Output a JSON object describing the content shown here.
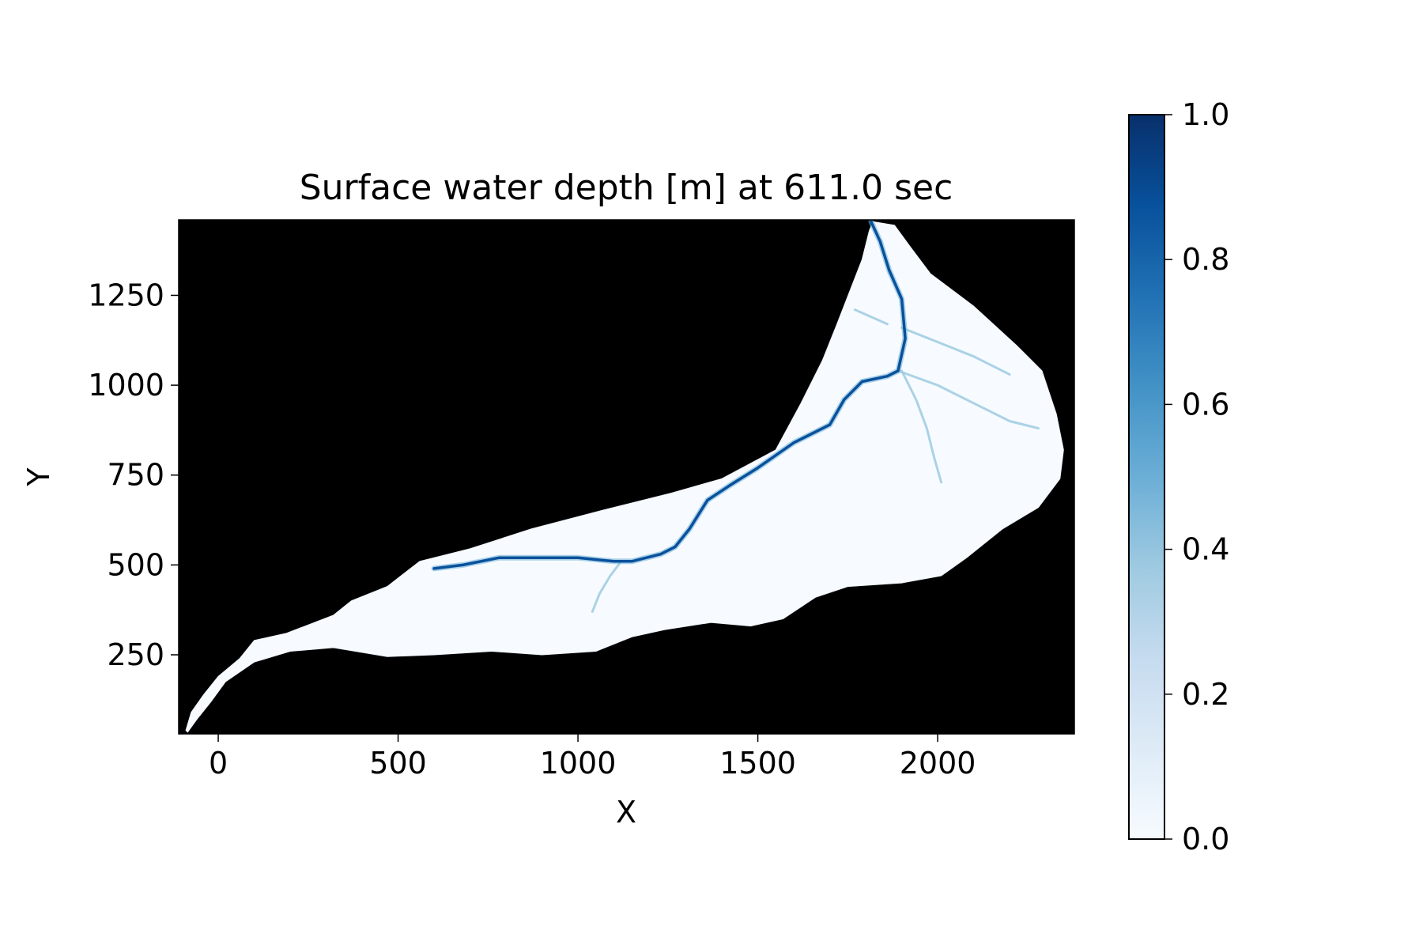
{
  "chart_data": {
    "type": "heatmap",
    "title": "Surface water depth [m] at 611.0 sec",
    "xlabel": "X",
    "ylabel": "Y",
    "xlim": [
      -110,
      2380
    ],
    "ylim": [
      30,
      1460
    ],
    "x_ticks": [
      0,
      500,
      1000,
      1500,
      2000
    ],
    "y_ticks": [
      250,
      500,
      750,
      1000,
      1250
    ],
    "background_color": "#000000",
    "colormap": "Blues",
    "colormap_stops": [
      "#f7fbff",
      "#deebf7",
      "#c6dbef",
      "#9ecae1",
      "#6baed6",
      "#4292c6",
      "#2171b5",
      "#08519c",
      "#08306b"
    ],
    "colorbar": {
      "min": 0.0,
      "max": 1.0,
      "ticks": [
        "0.0",
        "0.2",
        "0.4",
        "0.6",
        "0.8",
        "1.0"
      ]
    },
    "domain_outline": [
      [
        -90,
        40
      ],
      [
        -75,
        90
      ],
      [
        -40,
        140
      ],
      [
        0,
        190
      ],
      [
        60,
        240
      ],
      [
        100,
        290
      ],
      [
        190,
        310
      ],
      [
        320,
        360
      ],
      [
        370,
        400
      ],
      [
        470,
        440
      ],
      [
        560,
        510
      ],
      [
        700,
        545
      ],
      [
        870,
        600
      ],
      [
        1060,
        650
      ],
      [
        1260,
        700
      ],
      [
        1400,
        740
      ],
      [
        1550,
        820
      ],
      [
        1620,
        950
      ],
      [
        1680,
        1070
      ],
      [
        1720,
        1170
      ],
      [
        1790,
        1350
      ],
      [
        1810,
        1430
      ],
      [
        1820,
        1455
      ],
      [
        1880,
        1445
      ],
      [
        1920,
        1390
      ],
      [
        1980,
        1310
      ],
      [
        2100,
        1220
      ],
      [
        2220,
        1110
      ],
      [
        2290,
        1040
      ],
      [
        2330,
        920
      ],
      [
        2350,
        820
      ],
      [
        2340,
        740
      ],
      [
        2280,
        660
      ],
      [
        2180,
        600
      ],
      [
        2080,
        520
      ],
      [
        2010,
        470
      ],
      [
        1900,
        450
      ],
      [
        1750,
        440
      ],
      [
        1660,
        410
      ],
      [
        1570,
        350
      ],
      [
        1480,
        330
      ],
      [
        1370,
        340
      ],
      [
        1240,
        320
      ],
      [
        1150,
        300
      ],
      [
        1050,
        260
      ],
      [
        900,
        250
      ],
      [
        760,
        260
      ],
      [
        600,
        250
      ],
      [
        470,
        245
      ],
      [
        320,
        270
      ],
      [
        200,
        260
      ],
      [
        100,
        230
      ],
      [
        20,
        175
      ],
      [
        -20,
        120
      ],
      [
        -60,
        70
      ],
      [
        -85,
        35
      ]
    ],
    "main_channel": [
      [
        1815,
        1455
      ],
      [
        1840,
        1400
      ],
      [
        1865,
        1320
      ],
      [
        1900,
        1240
      ],
      [
        1910,
        1130
      ],
      [
        1890,
        1040
      ],
      [
        1860,
        1025
      ],
      [
        1790,
        1010
      ],
      [
        1740,
        960
      ],
      [
        1700,
        890
      ],
      [
        1600,
        840
      ],
      [
        1500,
        770
      ],
      [
        1420,
        720
      ],
      [
        1360,
        680
      ],
      [
        1310,
        600
      ],
      [
        1270,
        550
      ],
      [
        1230,
        530
      ],
      [
        1150,
        510
      ],
      [
        1100,
        510
      ],
      [
        1000,
        520
      ],
      [
        900,
        520
      ],
      [
        780,
        520
      ],
      [
        680,
        500
      ],
      [
        600,
        490
      ]
    ],
    "tributaries": [
      [
        [
          1900,
          1040
        ],
        [
          1940,
          960
        ],
        [
          1970,
          880
        ],
        [
          1990,
          800
        ],
        [
          2010,
          730
        ]
      ],
      [
        [
          1890,
          1040
        ],
        [
          2000,
          1000
        ],
        [
          2100,
          950
        ],
        [
          2200,
          900
        ],
        [
          2280,
          880
        ]
      ],
      [
        [
          1900,
          1160
        ],
        [
          2000,
          1120
        ],
        [
          2100,
          1080
        ],
        [
          2200,
          1030
        ]
      ],
      [
        [
          1120,
          510
        ],
        [
          1090,
          470
        ],
        [
          1060,
          420
        ],
        [
          1040,
          370
        ]
      ],
      [
        [
          1770,
          1210
        ],
        [
          1860,
          1170
        ]
      ]
    ]
  }
}
